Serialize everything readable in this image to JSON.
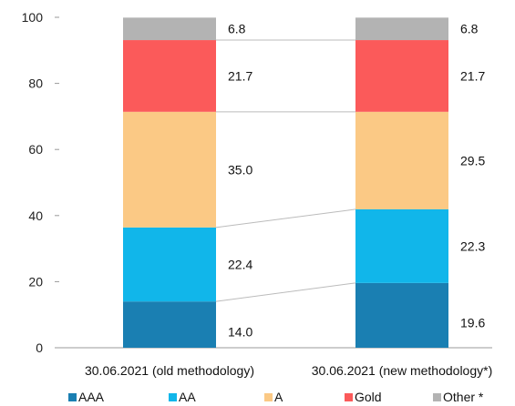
{
  "chart_data": {
    "type": "bar",
    "stacked": true,
    "categories": [
      "30.06.2021 (old methodology)",
      "30.06.2021 (new methodology*)"
    ],
    "series": [
      {
        "name": "AAA",
        "values": [
          14.0,
          19.6
        ],
        "labels": [
          "14.0",
          "19.6"
        ],
        "color": "#1a7fb2"
      },
      {
        "name": "AA",
        "values": [
          22.4,
          22.3
        ],
        "labels": [
          "22.4",
          "22.3"
        ],
        "color": "#11b6ea"
      },
      {
        "name": "A",
        "values": [
          35.0,
          29.5
        ],
        "labels": [
          "35.0",
          "29.5"
        ],
        "color": "#fbc985"
      },
      {
        "name": "Gold",
        "values": [
          21.7,
          21.7
        ],
        "labels": [
          "21.7",
          "21.7"
        ],
        "color": "#fb5a5a"
      },
      {
        "name": "Other *",
        "values": [
          6.8,
          6.8
        ],
        "labels": [
          "6.8",
          "6.8"
        ],
        "color": "#b3b3b3"
      }
    ],
    "ylim": [
      0,
      100
    ],
    "yticks": [
      "0",
      "20",
      "40",
      "60",
      "80",
      "100"
    ],
    "legend_position": "bottom",
    "grid": false,
    "connector_lines": true
  }
}
